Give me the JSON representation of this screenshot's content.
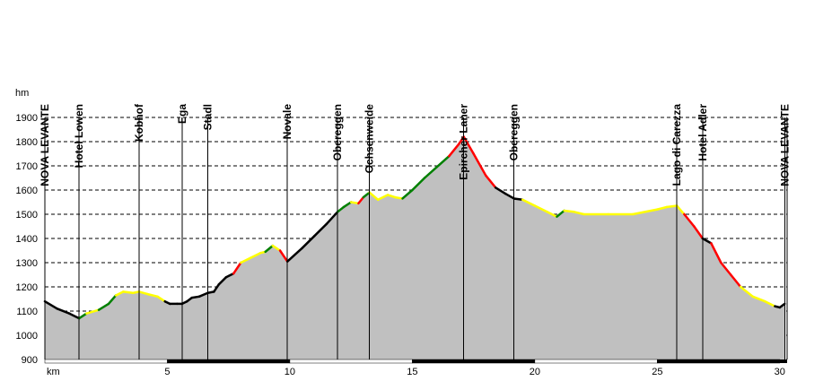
{
  "chart_data": {
    "type": "area",
    "title": "",
    "xlabel": "km",
    "ylabel": "hm",
    "xlim": [
      0,
      30.3
    ],
    "ylim": [
      900,
      1900
    ],
    "x_ticks": [
      0,
      5,
      10,
      15,
      20,
      25,
      30
    ],
    "x_tick_labels": [
      "",
      "5",
      "10",
      "15",
      "20",
      "25",
      "30"
    ],
    "y_ticks": [
      900,
      1000,
      1100,
      1200,
      1300,
      1400,
      1500,
      1600,
      1700,
      1800,
      1900
    ],
    "grid": "horizontal-dashed",
    "colors": {
      "fill": "#c0c0c0",
      "axis": "#000000",
      "grid": "#000000",
      "gradient_up_steep": "#ff0000",
      "gradient_up": "#008000",
      "gradient_flat": "#ffff00",
      "gradient_other": "#800080",
      "base": "#000000"
    },
    "waypoints": [
      {
        "name": "NOVA LEVANTE",
        "x": 0.0
      },
      {
        "name": "Hotel Lowen",
        "x": 1.4
      },
      {
        "name": "Kobhof",
        "x": 3.85
      },
      {
        "name": "Ega",
        "x": 5.6
      },
      {
        "name": "Stadl",
        "x": 6.65
      },
      {
        "name": "Novale",
        "x": 9.9
      },
      {
        "name": "Obereggen",
        "x": 11.95
      },
      {
        "name": "Ochsenweide",
        "x": 13.25
      },
      {
        "name": "Epircher Laner",
        "x": 17.1
      },
      {
        "name": "Obereggen",
        "x": 19.15
      },
      {
        "name": "Lago di Carezza",
        "x": 25.8
      },
      {
        "name": "Hotel Adler",
        "x": 26.85
      },
      {
        "name": "NOVA LEVANTE",
        "x": 30.2
      }
    ],
    "series": [
      {
        "points": [
          [
            0.0,
            1140
          ],
          [
            0.5,
            1110
          ],
          [
            1.0,
            1090
          ],
          [
            1.4,
            1070
          ],
          [
            1.7,
            1090
          ],
          [
            2.2,
            1105
          ],
          [
            2.6,
            1130
          ],
          [
            2.9,
            1165
          ],
          [
            3.2,
            1180
          ],
          [
            3.6,
            1175
          ],
          [
            3.85,
            1180
          ],
          [
            4.2,
            1170
          ],
          [
            4.6,
            1160
          ],
          [
            4.9,
            1140
          ],
          [
            5.1,
            1130
          ],
          [
            5.4,
            1130
          ],
          [
            5.6,
            1130
          ],
          [
            5.8,
            1140
          ],
          [
            6.0,
            1155
          ],
          [
            6.3,
            1160
          ],
          [
            6.65,
            1175
          ],
          [
            6.9,
            1180
          ],
          [
            7.1,
            1210
          ],
          [
            7.4,
            1240
          ],
          [
            7.7,
            1255
          ],
          [
            8.0,
            1300
          ],
          [
            8.4,
            1320
          ],
          [
            8.8,
            1340
          ],
          [
            9.0,
            1345
          ],
          [
            9.3,
            1370
          ],
          [
            9.6,
            1350
          ],
          [
            9.9,
            1305
          ],
          [
            10.5,
            1360
          ],
          [
            11.0,
            1410
          ],
          [
            11.5,
            1460
          ],
          [
            11.95,
            1510
          ],
          [
            12.2,
            1530
          ],
          [
            12.5,
            1550
          ],
          [
            12.8,
            1545
          ],
          [
            13.0,
            1570
          ],
          [
            13.25,
            1590
          ],
          [
            13.6,
            1560
          ],
          [
            14.0,
            1580
          ],
          [
            14.3,
            1570
          ],
          [
            14.6,
            1565
          ],
          [
            15.0,
            1600
          ],
          [
            15.5,
            1650
          ],
          [
            16.0,
            1695
          ],
          [
            16.5,
            1740
          ],
          [
            16.9,
            1790
          ],
          [
            17.1,
            1820
          ],
          [
            17.5,
            1750
          ],
          [
            18.0,
            1660
          ],
          [
            18.4,
            1610
          ],
          [
            18.8,
            1585
          ],
          [
            19.15,
            1565
          ],
          [
            19.5,
            1560
          ],
          [
            20.0,
            1535
          ],
          [
            20.5,
            1510
          ],
          [
            20.9,
            1490
          ],
          [
            21.2,
            1515
          ],
          [
            21.6,
            1510
          ],
          [
            22.0,
            1500
          ],
          [
            23.0,
            1500
          ],
          [
            24.0,
            1500
          ],
          [
            25.0,
            1520
          ],
          [
            25.4,
            1530
          ],
          [
            25.8,
            1535
          ],
          [
            26.1,
            1500
          ],
          [
            26.5,
            1450
          ],
          [
            26.85,
            1400
          ],
          [
            27.2,
            1380
          ],
          [
            27.6,
            1300
          ],
          [
            28.0,
            1250
          ],
          [
            28.4,
            1200
          ],
          [
            28.9,
            1160
          ],
          [
            29.4,
            1140
          ],
          [
            29.8,
            1120
          ],
          [
            30.0,
            1115
          ],
          [
            30.2,
            1130
          ]
        ]
      }
    ]
  }
}
